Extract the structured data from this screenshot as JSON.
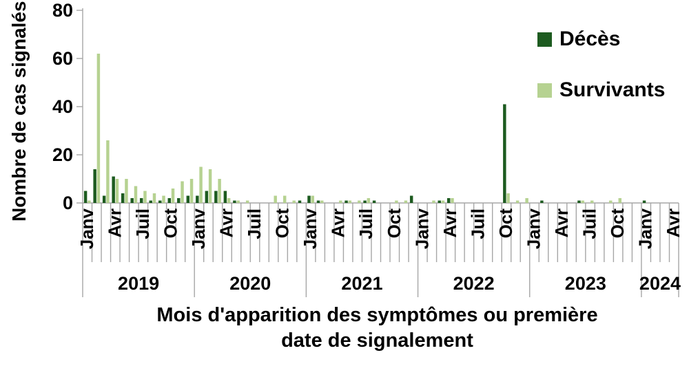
{
  "chart_data": {
    "type": "bar",
    "title": "",
    "ylabel": "Nombre de cas signalés",
    "xlabel_line1": "Mois d'apparition des symptômes ou première",
    "xlabel_line2": "date de signalement",
    "ylim": [
      0,
      80
    ],
    "yticks": [
      0,
      20,
      40,
      60,
      80
    ],
    "quarter_month_labels": [
      "Janv",
      "Avr",
      "Juil",
      "Oct"
    ],
    "years": [
      {
        "label": "2019",
        "months": 12
      },
      {
        "label": "2020",
        "months": 12
      },
      {
        "label": "2021",
        "months": 12
      },
      {
        "label": "2022",
        "months": 12
      },
      {
        "label": "2023",
        "months": 12
      },
      {
        "label": "2024",
        "months": 4
      }
    ],
    "legend": [
      {
        "name": "Décès",
        "color": "#1d5b20"
      },
      {
        "name": "Survivants",
        "color": "#b6d291"
      }
    ],
    "series": [
      {
        "name": "Décès",
        "color": "#1d5b20",
        "values": [
          5,
          14,
          3,
          11,
          4,
          2,
          2,
          1,
          1,
          2,
          2,
          3,
          3,
          5,
          5,
          5,
          1,
          0,
          0,
          0,
          0,
          0,
          0,
          1,
          3,
          1,
          0,
          0,
          1,
          0,
          1,
          1,
          0,
          0,
          0,
          3,
          0,
          0,
          1,
          2,
          0,
          0,
          0,
          0,
          0,
          41,
          0,
          0,
          0,
          1,
          0,
          0,
          0,
          1,
          0,
          0,
          0,
          0,
          0,
          0,
          1,
          0,
          0,
          0
        ]
      },
      {
        "name": "Survivants",
        "color": "#b6d291",
        "values": [
          1,
          62,
          26,
          10,
          10,
          7,
          5,
          4,
          3,
          6,
          9,
          10,
          15,
          14,
          10,
          2,
          1,
          1,
          0,
          0,
          3,
          3,
          1,
          0,
          3,
          1,
          0,
          1,
          1,
          1,
          2,
          0,
          0,
          1,
          1,
          0,
          0,
          1,
          1,
          2,
          0,
          0,
          0,
          0,
          0,
          4,
          1,
          2,
          0,
          0,
          0,
          0,
          0,
          1,
          1,
          0,
          1,
          2,
          0,
          0,
          0,
          0,
          0,
          0
        ]
      }
    ],
    "axis_color": "#a6a6a6"
  }
}
